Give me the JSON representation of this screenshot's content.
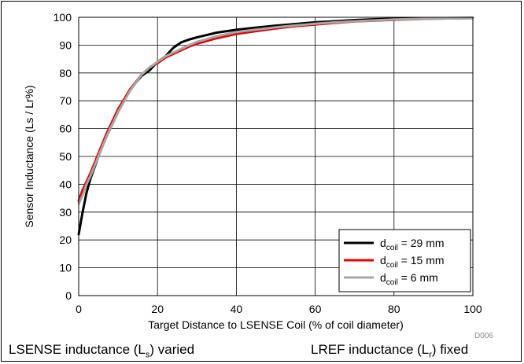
{
  "chart_data": {
    "type": "line",
    "xlabel": "Target Distance to LSENSE Coil (% of coil diameter)",
    "ylabel": "Sensor Inductance (Ls / Lr%)",
    "xlim": [
      0,
      100
    ],
    "ylim": [
      0,
      100
    ],
    "xticks": [
      "0",
      "20",
      "40",
      "60",
      "80",
      "100"
    ],
    "yticks": [
      "0",
      "10",
      "20",
      "30",
      "40",
      "50",
      "60",
      "70",
      "80",
      "90",
      "100"
    ],
    "grid": true,
    "legend_position": "bottom-right",
    "figure_id": "D006",
    "series": [
      {
        "legend_main": "d",
        "legend_sub": "coil",
        "legend_rest": " = 29 mm",
        "color": "#000000",
        "points": [
          [
            0,
            22
          ],
          [
            1,
            30
          ],
          [
            2,
            37
          ],
          [
            3,
            42
          ],
          [
            5,
            50
          ],
          [
            7,
            57
          ],
          [
            10,
            66
          ],
          [
            13,
            74
          ],
          [
            16,
            79
          ],
          [
            18,
            81
          ],
          [
            20,
            84
          ],
          [
            22,
            86
          ],
          [
            24,
            89
          ],
          [
            26,
            91
          ],
          [
            28,
            92
          ],
          [
            30,
            92.8
          ],
          [
            35,
            94.5
          ],
          [
            40,
            95.5
          ],
          [
            45,
            96.3
          ],
          [
            50,
            97
          ],
          [
            55,
            97.6
          ],
          [
            60,
            98.2
          ],
          [
            65,
            98.6
          ],
          [
            70,
            99
          ],
          [
            75,
            99.3
          ],
          [
            80,
            99.5
          ],
          [
            90,
            99.7
          ],
          [
            100,
            99.8
          ]
        ]
      },
      {
        "legend_main": "d",
        "legend_sub": "coil",
        "legend_rest": " = 15 mm",
        "color": "#e60000",
        "points": [
          [
            0,
            34
          ],
          [
            1,
            38
          ],
          [
            2,
            41
          ],
          [
            3,
            44
          ],
          [
            5,
            51
          ],
          [
            7,
            58
          ],
          [
            10,
            67
          ],
          [
            13,
            74
          ],
          [
            16,
            79.5
          ],
          [
            18,
            82
          ],
          [
            20,
            83.5
          ],
          [
            22,
            85.5
          ],
          [
            25,
            87.5
          ],
          [
            28,
            89.5
          ],
          [
            30,
            90.5
          ],
          [
            35,
            92.5
          ],
          [
            40,
            94
          ],
          [
            45,
            95
          ],
          [
            50,
            96
          ],
          [
            55,
            96.8
          ],
          [
            60,
            97.4
          ],
          [
            65,
            98
          ],
          [
            70,
            98.5
          ],
          [
            75,
            98.8
          ],
          [
            80,
            99.1
          ],
          [
            90,
            99.5
          ],
          [
            100,
            99.7
          ]
        ]
      },
      {
        "legend_main": "d",
        "legend_sub": "coil",
        "legend_rest": " = 6 mm",
        "color": "#a6a6a6",
        "points": [
          [
            0,
            33
          ],
          [
            1,
            36
          ],
          [
            2,
            40
          ],
          [
            3,
            43
          ],
          [
            5,
            50
          ],
          [
            7,
            57
          ],
          [
            10,
            66
          ],
          [
            13,
            73.5
          ],
          [
            16,
            79.5
          ],
          [
            18,
            82
          ],
          [
            20,
            84
          ],
          [
            22,
            86
          ],
          [
            25,
            88
          ],
          [
            28,
            90
          ],
          [
            30,
            91.2
          ],
          [
            35,
            93.2
          ],
          [
            40,
            94.7
          ],
          [
            45,
            95.6
          ],
          [
            50,
            96.4
          ],
          [
            55,
            97.1
          ],
          [
            60,
            97.7
          ],
          [
            65,
            98.2
          ],
          [
            70,
            98.6
          ],
          [
            75,
            98.9
          ],
          [
            80,
            99.2
          ],
          [
            90,
            99.5
          ],
          [
            100,
            99.7
          ]
        ]
      }
    ]
  },
  "captions": {
    "left_main": "LSENSE inductance (L",
    "left_sub": "s",
    "left_rest": ") varied",
    "right_main": "LREF inductance (L",
    "right_sub": "r",
    "right_rest": ") fixed"
  }
}
